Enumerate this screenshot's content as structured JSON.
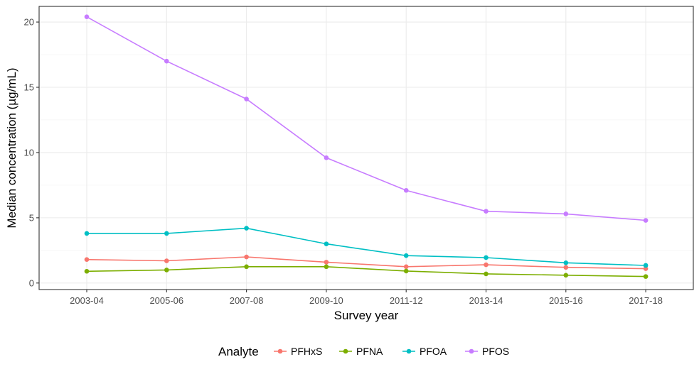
{
  "chart_data": {
    "type": "line",
    "title": "",
    "xlabel": "Survey year",
    "ylabel": "Median concentration (µg/mL)",
    "categories": [
      "2003-04",
      "2005-06",
      "2007-08",
      "2009-10",
      "2011-12",
      "2013-14",
      "2015-16",
      "2017-18"
    ],
    "ylim": [
      -0.5,
      21.2
    ],
    "yticks": [
      0,
      5,
      10,
      15,
      20
    ],
    "grid": true,
    "legend": {
      "title": "Analyte",
      "position": "bottom"
    },
    "series": [
      {
        "name": "PFHxS",
        "color": "#F8766D",
        "values": [
          1.8,
          1.7,
          2.0,
          1.6,
          1.25,
          1.4,
          1.2,
          1.1
        ]
      },
      {
        "name": "PFNA",
        "color": "#7CAE00",
        "values": [
          0.9,
          1.0,
          1.25,
          1.25,
          0.92,
          0.7,
          0.6,
          0.5
        ]
      },
      {
        "name": "PFOA",
        "color": "#00BFC4",
        "values": [
          3.8,
          3.8,
          4.2,
          3.0,
          2.1,
          1.95,
          1.55,
          1.35
        ]
      },
      {
        "name": "PFOS",
        "color": "#C77CFF",
        "values": [
          20.4,
          17.0,
          14.1,
          9.6,
          7.1,
          5.5,
          5.3,
          4.8
        ]
      }
    ]
  }
}
